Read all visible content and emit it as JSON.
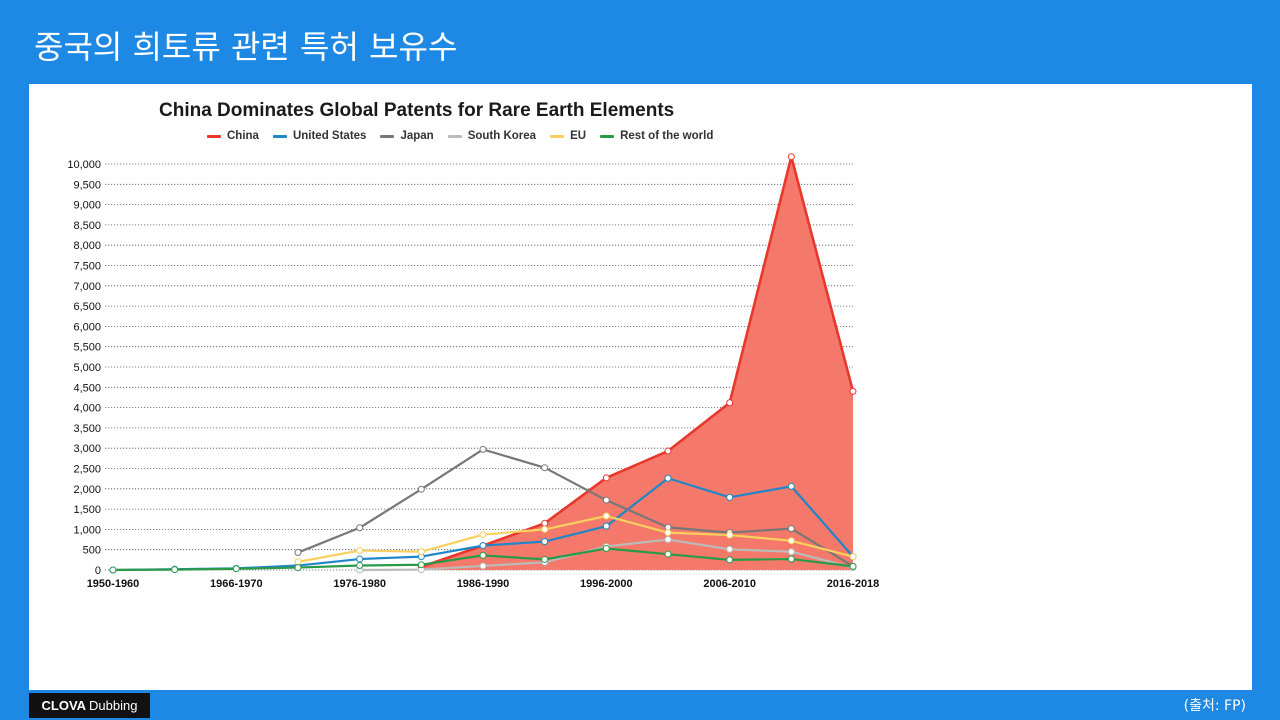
{
  "slide": {
    "title": "중국의 희토류 관련 특허 보유수",
    "source": "(출처: FP)",
    "brand_bold": "CLOVA",
    "brand_rest": "Dubbing"
  },
  "colors": {
    "background": "#1e88e5",
    "panel": "#ffffff",
    "china_fill": "#f4796b"
  },
  "chart_data": {
    "type": "line",
    "title": "China Dominates Global Patents for Rare Earth Elements",
    "xlabel": "",
    "ylabel": "",
    "ylim": [
      0,
      10000
    ],
    "yticks": [
      0,
      500,
      1000,
      1500,
      2000,
      2500,
      3000,
      3500,
      4000,
      4500,
      5000,
      5500,
      6000,
      6500,
      7000,
      7500,
      8000,
      8500,
      9000,
      9500,
      10000
    ],
    "ytick_labels": [
      "0",
      "500",
      "1,000",
      "1,500",
      "2,000",
      "2,500",
      "3,000",
      "3,500",
      "4,000",
      "4,500",
      "5,000",
      "5,500",
      "6,000",
      "6,500",
      "7,000",
      "7,500",
      "8,000",
      "8,500",
      "9,000",
      "9,500",
      "10,000"
    ],
    "x_labels": [
      "1950-1960",
      "1966-1970",
      "1976-1980",
      "1986-1990",
      "1996-2000",
      "2006-2010",
      "2016-2018"
    ],
    "x_label_positions": [
      0,
      2,
      4,
      6,
      8,
      10,
      12
    ],
    "grid": true,
    "legend": "top",
    "series": [
      {
        "name": "China",
        "color": "#e8382d",
        "area": true,
        "start": 5,
        "values": [
          80,
          600,
          1150,
          2270,
          2930,
          4120,
          10180,
          4400
        ]
      },
      {
        "name": "United States",
        "color": "#1f86c8",
        "area": false,
        "start": 0,
        "values": [
          0,
          20,
          40,
          110,
          270,
          330,
          600,
          700,
          1080,
          2260,
          1790,
          2060,
          330
        ]
      },
      {
        "name": "Japan",
        "color": "#777777",
        "area": false,
        "start": 3,
        "values": [
          430,
          1040,
          1990,
          2970,
          2520,
          1720,
          1050,
          920,
          1020,
          90
        ]
      },
      {
        "name": "South Korea",
        "color": "#bbbbbb",
        "area": false,
        "start": 4,
        "values": [
          0,
          10,
          100,
          190,
          580,
          750,
          510,
          450,
          60
        ]
      },
      {
        "name": "EU",
        "color": "#f8d060",
        "area": false,
        "start": 3,
        "values": [
          200,
          480,
          450,
          870,
          1000,
          1330,
          920,
          860,
          720,
          330
        ]
      },
      {
        "name": "Rest of the world",
        "color": "#2a9a48",
        "area": false,
        "start": 0,
        "values": [
          0,
          10,
          30,
          60,
          110,
          130,
          360,
          260,
          530,
          390,
          250,
          270,
          90
        ]
      }
    ]
  }
}
